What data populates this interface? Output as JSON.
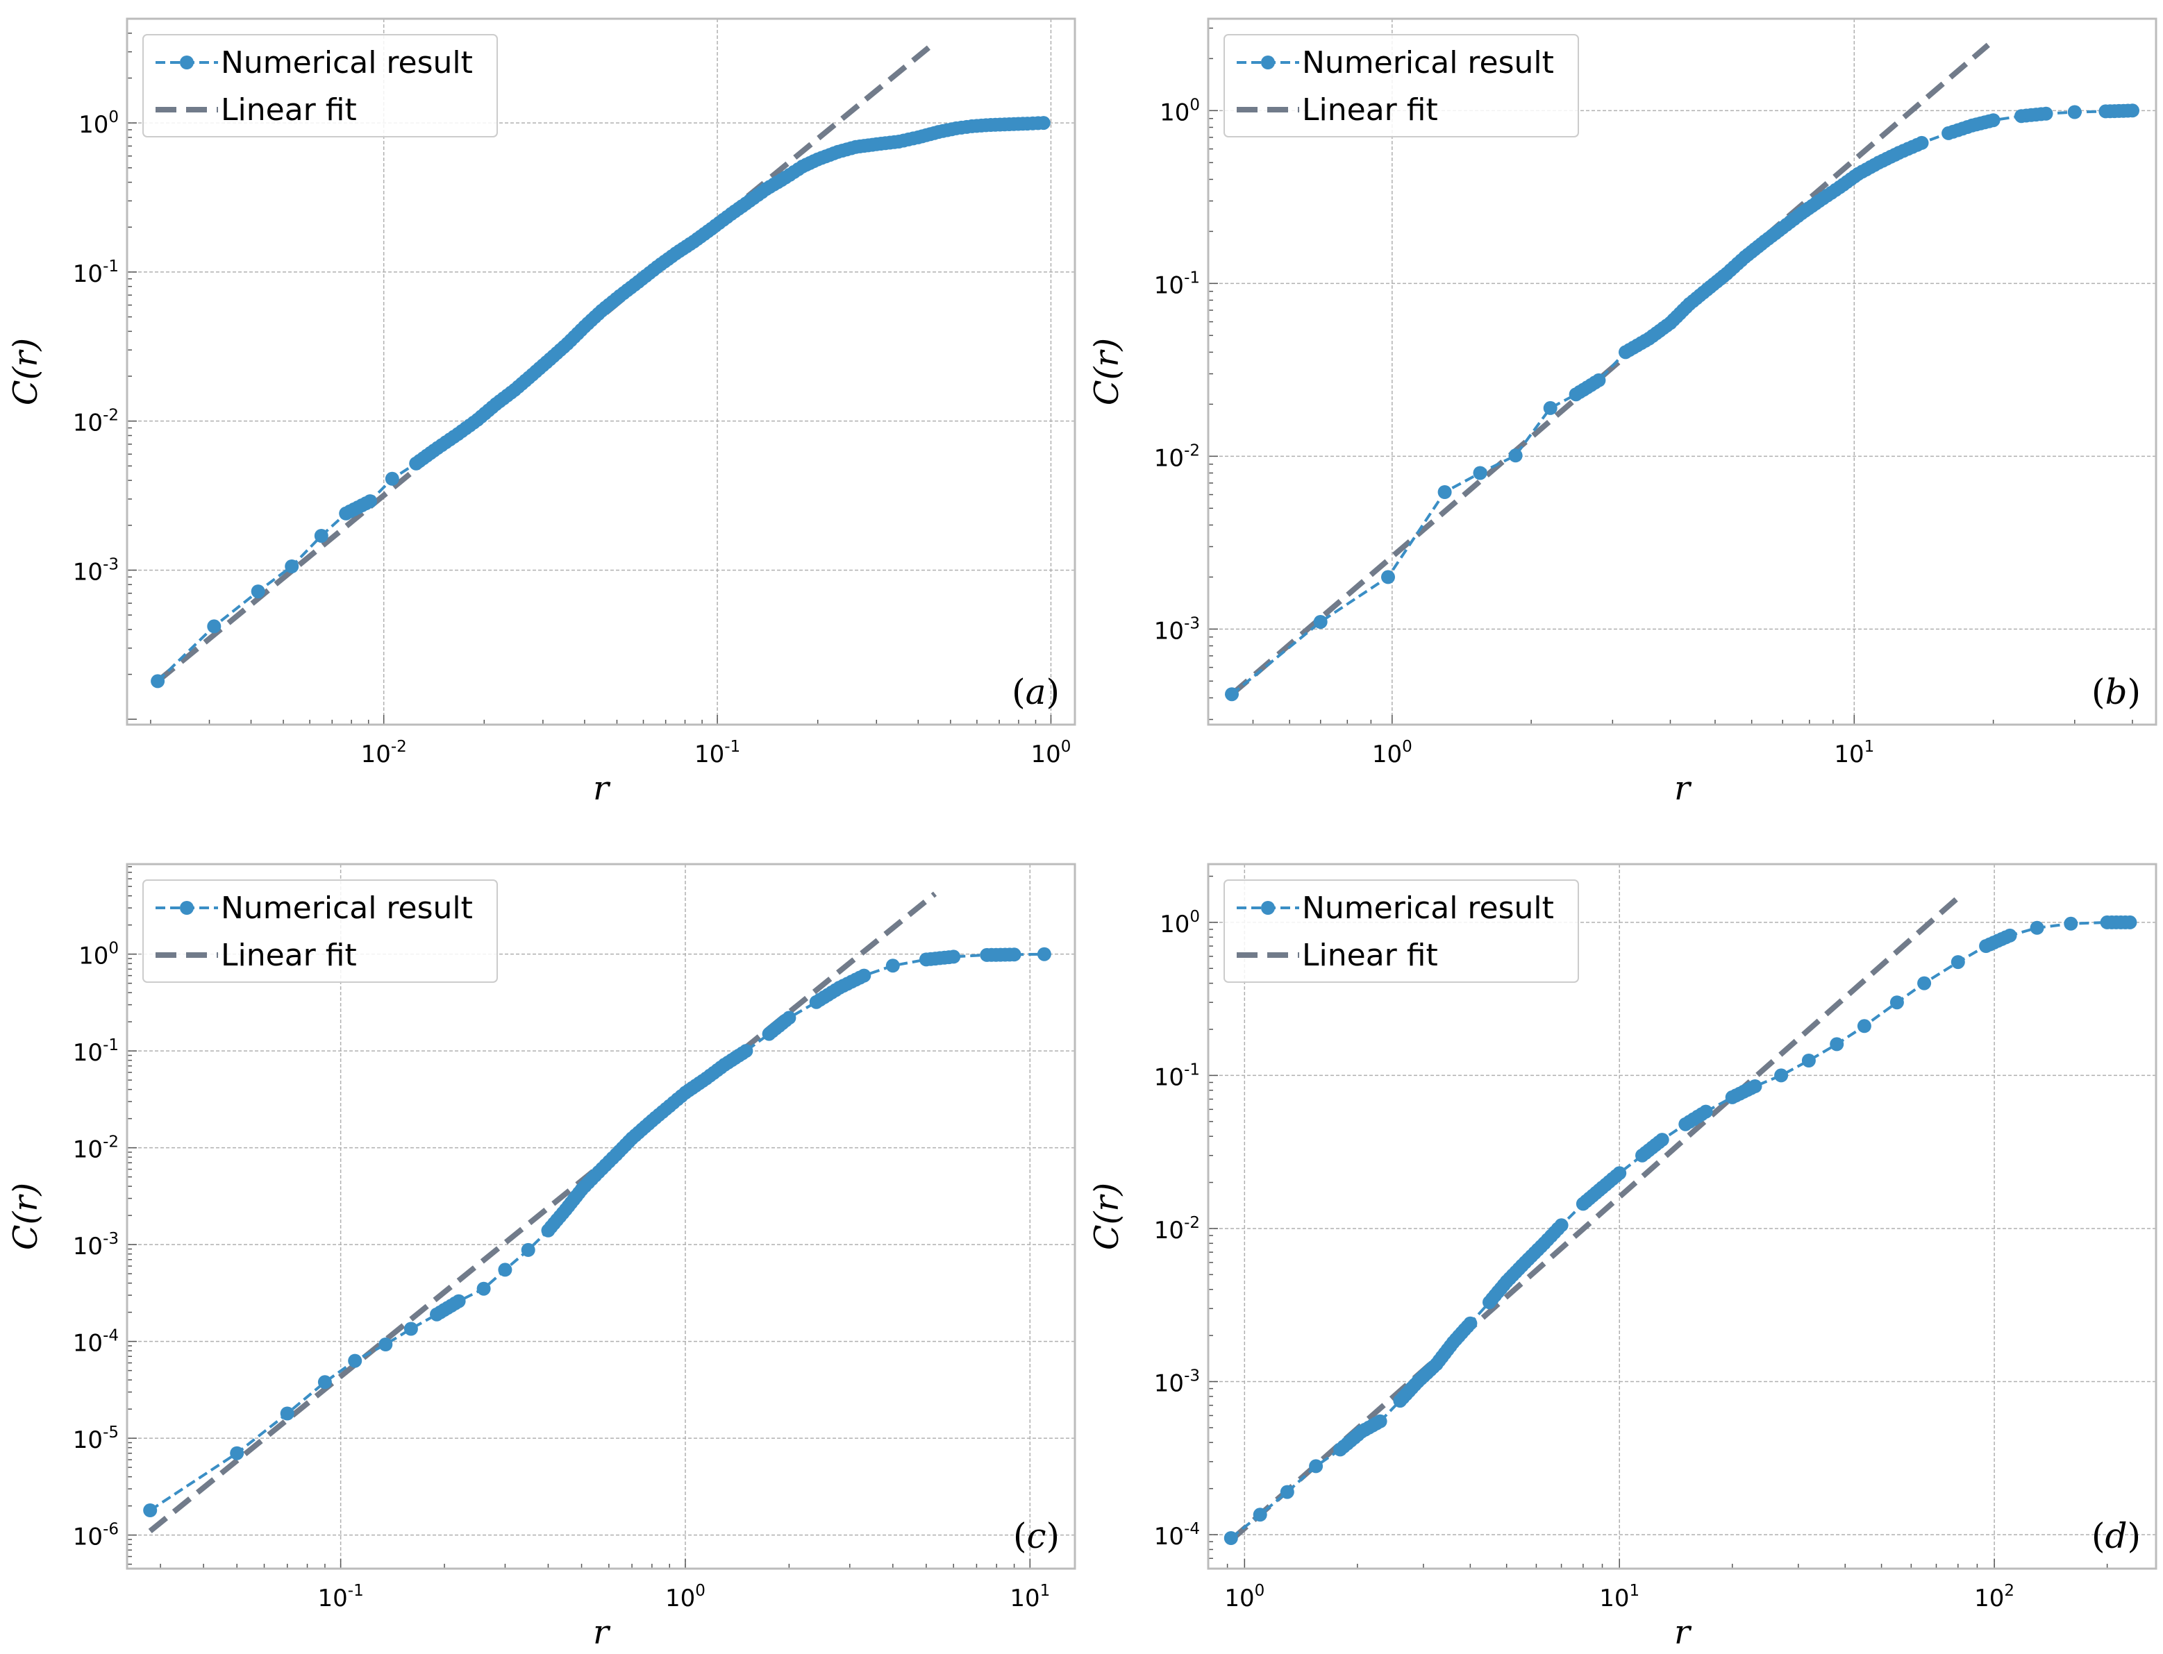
{
  "colors": {
    "numerical": "#3a8ec5",
    "fit": "#717b8a",
    "grid": "#b0b0b0",
    "frame": "#bcbcbc"
  },
  "legend": {
    "numerical": "Numerical result",
    "fit": "Linear fit"
  },
  "chart_data": [
    {
      "type": "line",
      "panel_label": "a",
      "xlabel": "r",
      "ylabel": "C(r)",
      "xscale": "log",
      "yscale": "log",
      "xlim": [
        0.0017,
        1.18
      ],
      "ylim": [
        9.2e-05,
        5.0
      ],
      "xticks": [
        {
          "base": "10",
          "exp": "-2",
          "value": 0.01
        },
        {
          "base": "10",
          "exp": "-1",
          "value": 0.1
        },
        {
          "base": "10",
          "exp": "0",
          "value": 1
        }
      ],
      "yticks": [
        {
          "base": "10",
          "exp": "-3",
          "value": 0.001
        },
        {
          "base": "10",
          "exp": "-2",
          "value": 0.01
        },
        {
          "base": "10",
          "exp": "-1",
          "value": 0.1
        },
        {
          "base": "10",
          "exp": "0",
          "value": 1
        }
      ],
      "legend_position": "top-left",
      "series": [
        {
          "name": "Numerical result",
          "style": "dashed-line-with-markers",
          "x": [
            0.0021,
            0.0031,
            0.0042,
            0.0053,
            0.0065,
            0.0077,
            0.0091,
            0.0106,
            0.0125,
            0.0145,
            0.0167,
            0.0191,
            0.0217,
            0.0247,
            0.0279,
            0.0315,
            0.0355,
            0.04,
            0.045,
            0.051,
            0.058,
            0.066,
            0.075,
            0.085,
            0.096,
            0.11,
            0.125,
            0.14,
            0.16,
            0.18,
            0.2,
            0.23,
            0.26,
            0.3,
            0.35,
            0.4,
            0.46,
            0.52,
            0.58,
            0.66,
            0.75,
            0.85,
            0.95
          ],
          "y": [
            0.00018,
            0.00042,
            0.00072,
            0.00106,
            0.0017,
            0.0024,
            0.0029,
            0.0041,
            0.0052,
            0.0066,
            0.0082,
            0.0102,
            0.013,
            0.0162,
            0.0205,
            0.026,
            0.033,
            0.043,
            0.055,
            0.069,
            0.086,
            0.108,
            0.133,
            0.16,
            0.195,
            0.245,
            0.3,
            0.36,
            0.43,
            0.51,
            0.57,
            0.64,
            0.69,
            0.72,
            0.75,
            0.8,
            0.87,
            0.92,
            0.95,
            0.97,
            0.98,
            0.99,
            1.0
          ]
        },
        {
          "name": "Linear fit",
          "style": "dashed-line",
          "x": [
            0.0021,
            0.43
          ],
          "y": [
            0.00018,
            3.2
          ]
        }
      ]
    },
    {
      "type": "line",
      "panel_label": "b",
      "xlabel": "r",
      "ylabel": "C(r)",
      "xscale": "log",
      "yscale": "log",
      "xlim": [
        0.4,
        45
      ],
      "ylim": [
        0.00028,
        3.4
      ],
      "xticks": [
        {
          "base": "10",
          "exp": "0",
          "value": 1
        },
        {
          "base": "10",
          "exp": "1",
          "value": 10
        }
      ],
      "yticks": [
        {
          "base": "10",
          "exp": "-3",
          "value": 0.001
        },
        {
          "base": "10",
          "exp": "-2",
          "value": 0.01
        },
        {
          "base": "10",
          "exp": "-1",
          "value": 0.1
        },
        {
          "base": "10",
          "exp": "0",
          "value": 1
        }
      ],
      "legend_position": "top-left",
      "series": [
        {
          "name": "Numerical result",
          "style": "dashed-line-with-markers",
          "x": [
            0.45,
            0.7,
            0.98,
            1.3,
            1.55,
            1.85,
            2.2,
            2.5,
            2.8,
            3.2,
            3.6,
            4.0,
            4.4,
            4.8,
            5.3,
            5.8,
            6.4,
            7.0,
            7.7,
            8.4,
            9.3,
            10.2,
            11.3,
            12.5,
            14,
            16,
            18,
            20,
            23,
            26,
            30,
            35,
            40
          ],
          "y": [
            0.00042,
            0.0011,
            0.002,
            0.0062,
            0.008,
            0.0101,
            0.019,
            0.0228,
            0.0275,
            0.04,
            0.048,
            0.059,
            0.076,
            0.092,
            0.114,
            0.142,
            0.175,
            0.21,
            0.255,
            0.3,
            0.36,
            0.43,
            0.5,
            0.57,
            0.65,
            0.74,
            0.82,
            0.88,
            0.93,
            0.96,
            0.98,
            0.99,
            1.0
          ]
        },
        {
          "name": "Linear fit",
          "style": "dashed-line",
          "x": [
            0.45,
            19.5
          ],
          "y": [
            0.00042,
            2.4
          ]
        }
      ]
    },
    {
      "type": "line",
      "panel_label": "c",
      "xlabel": "r",
      "ylabel": "C(r)",
      "xscale": "log",
      "yscale": "log",
      "xlim": [
        0.024,
        13.5
      ],
      "ylim": [
        4.5e-07,
        8.5
      ],
      "xticks": [
        {
          "base": "10",
          "exp": "-1",
          "value": 0.1
        },
        {
          "base": "10",
          "exp": "0",
          "value": 1
        },
        {
          "base": "10",
          "exp": "1",
          "value": 10
        }
      ],
      "yticks": [
        {
          "base": "10",
          "exp": "-6",
          "value": 1e-06
        },
        {
          "base": "10",
          "exp": "-5",
          "value": 1e-05
        },
        {
          "base": "10",
          "exp": "-4",
          "value": 0.0001
        },
        {
          "base": "10",
          "exp": "-3",
          "value": 0.001
        },
        {
          "base": "10",
          "exp": "-2",
          "value": 0.01
        },
        {
          "base": "10",
          "exp": "-1",
          "value": 0.1
        },
        {
          "base": "10",
          "exp": "0",
          "value": 1
        }
      ],
      "legend_position": "top-left",
      "series": [
        {
          "name": "Numerical result",
          "style": "dashed-line-with-markers",
          "x": [
            0.028,
            0.05,
            0.07,
            0.09,
            0.11,
            0.135,
            0.16,
            0.19,
            0.22,
            0.26,
            0.3,
            0.35,
            0.4,
            0.45,
            0.5,
            0.56,
            0.63,
            0.7,
            0.8,
            0.9,
            1.0,
            1.15,
            1.3,
            1.5,
            1.75,
            2.0,
            2.4,
            2.8,
            3.3,
            4.0,
            5.0,
            6.0,
            7.5,
            9.0,
            11.0
          ],
          "y": [
            1.8e-06,
            7e-06,
            1.8e-05,
            3.8e-05,
            6.3e-05,
            9.3e-05,
            0.000135,
            0.00019,
            0.00026,
            0.00035,
            0.00055,
            0.00088,
            0.0014,
            0.0023,
            0.0037,
            0.0056,
            0.0085,
            0.0125,
            0.019,
            0.027,
            0.037,
            0.052,
            0.072,
            0.1,
            0.15,
            0.22,
            0.32,
            0.45,
            0.6,
            0.76,
            0.88,
            0.94,
            0.98,
            0.99,
            1.0
          ]
        },
        {
          "name": "Linear fit",
          "style": "dashed-line",
          "x": [
            0.028,
            5.3
          ],
          "y": [
            1.1e-06,
            4.2
          ]
        }
      ]
    },
    {
      "type": "line",
      "panel_label": "d",
      "xlabel": "r",
      "ylabel": "C(r)",
      "xscale": "log",
      "yscale": "log",
      "xlim": [
        0.8,
        270
      ],
      "ylim": [
        6e-05,
        2.4
      ],
      "xticks": [
        {
          "base": "10",
          "exp": "0",
          "value": 1
        },
        {
          "base": "10",
          "exp": "1",
          "value": 10
        },
        {
          "base": "10",
          "exp": "2",
          "value": 100
        }
      ],
      "yticks": [
        {
          "base": "10",
          "exp": "-4",
          "value": 0.0001
        },
        {
          "base": "10",
          "exp": "-3",
          "value": 0.001
        },
        {
          "base": "10",
          "exp": "-2",
          "value": 0.01
        },
        {
          "base": "10",
          "exp": "-1",
          "value": 0.1
        },
        {
          "base": "10",
          "exp": "0",
          "value": 1
        }
      ],
      "legend_position": "top-left",
      "series": [
        {
          "name": "Numerical result",
          "style": "dashed-line-with-markers",
          "x": [
            0.92,
            1.1,
            1.3,
            1.55,
            1.8,
            2.05,
            2.3,
            2.6,
            2.9,
            3.25,
            3.6,
            4.0,
            4.5,
            5.0,
            5.6,
            6.3,
            7.0,
            8.0,
            9.0,
            10.0,
            11.5,
            13,
            15,
            17,
            20,
            23,
            27,
            32,
            38,
            45,
            55,
            65,
            80,
            95,
            110,
            130,
            160,
            200,
            230
          ],
          "y": [
            9.5e-05,
            0.000135,
            0.00019,
            0.00028,
            0.00036,
            0.00047,
            0.00055,
            0.00075,
            0.001,
            0.0013,
            0.0018,
            0.0024,
            0.0033,
            0.0045,
            0.006,
            0.008,
            0.0105,
            0.0145,
            0.0185,
            0.023,
            0.03,
            0.038,
            0.048,
            0.058,
            0.072,
            0.085,
            0.1,
            0.125,
            0.16,
            0.21,
            0.3,
            0.4,
            0.55,
            0.7,
            0.82,
            0.92,
            0.98,
            1.0,
            1.0
          ]
        },
        {
          "name": "Linear fit",
          "style": "dashed-line",
          "x": [
            0.92,
            80
          ],
          "y": [
            9.2e-05,
            1.45
          ]
        }
      ]
    }
  ]
}
